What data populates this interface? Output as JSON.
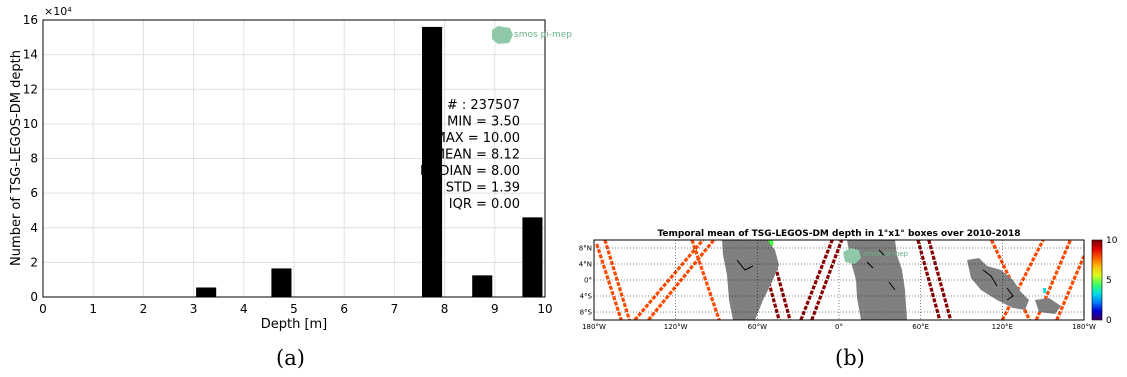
{
  "chart_data": [
    {
      "type": "bar",
      "xlabel": "Depth [m]",
      "ylabel": "Number of TSG-LEGOS-DM depth",
      "y_multiplier": "×10⁴",
      "xlim": [
        0,
        10
      ],
      "ylim": [
        0,
        16
      ],
      "x_ticks": [
        "0",
        "1",
        "2",
        "3",
        "4",
        "5",
        "6",
        "7",
        "8",
        "9",
        "10"
      ],
      "y_ticks": [
        "0",
        "2",
        "4",
        "6",
        "8",
        "10",
        "12",
        "14",
        "16"
      ],
      "bin_width": 0.4,
      "x": [
        3.25,
        4.75,
        7.75,
        8.75,
        9.75
      ],
      "values": [
        0.55,
        1.65,
        15.6,
        1.25,
        4.6
      ],
      "grid": true,
      "logo": "smos pi-mep",
      "stats": [
        "# : 237507",
        "MIN = 3.50",
        "MAX =  10.00",
        "MEAN = 8.12",
        "MEDIAN = 8.00",
        "STD = 1.39",
        "IQR = 0.00"
      ]
    },
    {
      "type": "heatmap",
      "title": "Temporal mean of TSG-LEGOS-DM depth in 1°x1° boxes over 2010-2018",
      "x_ticks": [
        "180°W",
        "120°W",
        "60°W",
        "0°",
        "60°E",
        "120°E",
        "180°W"
      ],
      "y_ticks": [
        "8°N",
        "4°N",
        "0°",
        "4°S",
        "8°S"
      ],
      "xlim": [
        -180,
        180
      ],
      "ylim": [
        -10,
        10
      ],
      "colorbar_ticks": [
        "10",
        "5",
        "0"
      ],
      "colorbar_range": [
        0,
        10
      ],
      "colormap": [
        "#7a0000",
        "#e00000",
        "#ff5a00",
        "#ffc000",
        "#d8ff20",
        "#40ff60",
        "#00e0e0",
        "#0080ff",
        "#0000d0",
        "#400060"
      ],
      "land_color": "#808080",
      "logo": "smos pi-mep"
    }
  ],
  "captions": [
    "(a)",
    "(b)"
  ]
}
